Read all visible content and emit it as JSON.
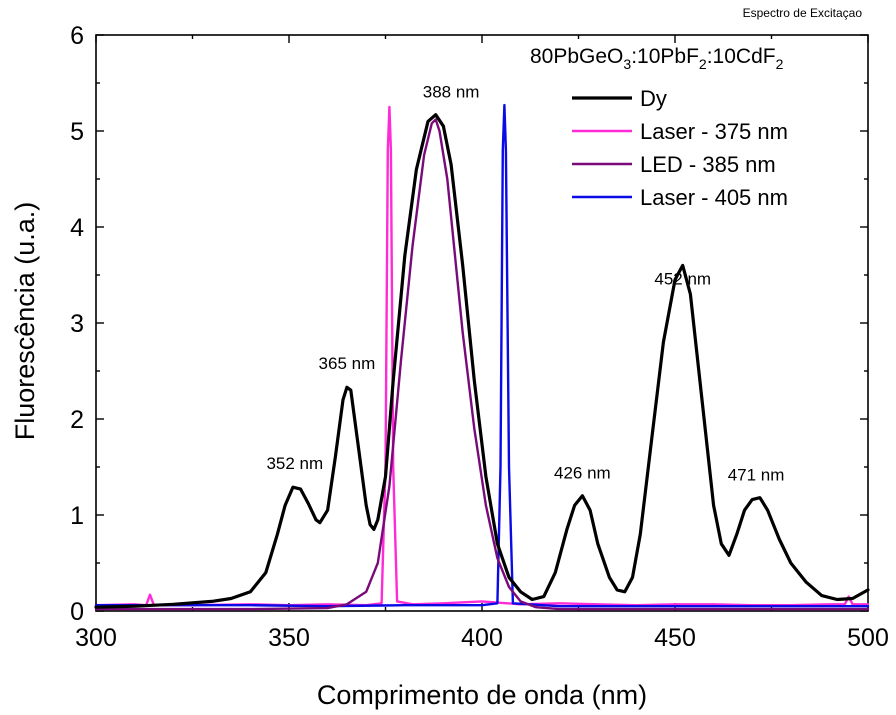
{
  "chart_data": {
    "type": "line",
    "corner_label": "Espectro de Excitaçao",
    "sample_label": {
      "parts": [
        {
          "text": "80PbGeO"
        },
        {
          "text": "3",
          "sub": true
        },
        {
          "text": ":10PbF"
        },
        {
          "text": "2",
          "sub": true
        },
        {
          "text": ":10CdF"
        },
        {
          "text": "2",
          "sub": true
        }
      ]
    },
    "xlabel": "Comprimento de onda (nm)",
    "ylabel": "Fluorescência (u.a.)",
    "xlim": [
      300,
      500
    ],
    "ylim": [
      0,
      6
    ],
    "xticks": [
      300,
      350,
      400,
      450,
      500
    ],
    "yticks": [
      0,
      1,
      2,
      3,
      4,
      5,
      6
    ],
    "legend_position": "top-right",
    "series": [
      {
        "name": "Dy",
        "color": "#000000",
        "points": [
          [
            300,
            0.04
          ],
          [
            310,
            0.05
          ],
          [
            320,
            0.07
          ],
          [
            330,
            0.1
          ],
          [
            335,
            0.13
          ],
          [
            340,
            0.2
          ],
          [
            344,
            0.4
          ],
          [
            347,
            0.8
          ],
          [
            349,
            1.1
          ],
          [
            351,
            1.29
          ],
          [
            353,
            1.27
          ],
          [
            355,
            1.12
          ],
          [
            357,
            0.95
          ],
          [
            358,
            0.92
          ],
          [
            360,
            1.05
          ],
          [
            362,
            1.6
          ],
          [
            364,
            2.2
          ],
          [
            365,
            2.33
          ],
          [
            366,
            2.3
          ],
          [
            368,
            1.7
          ],
          [
            370,
            1.1
          ],
          [
            371,
            0.9
          ],
          [
            372,
            0.85
          ],
          [
            373,
            0.95
          ],
          [
            375,
            1.4
          ],
          [
            377,
            2.4
          ],
          [
            380,
            3.7
          ],
          [
            383,
            4.6
          ],
          [
            386,
            5.1
          ],
          [
            388,
            5.17
          ],
          [
            390,
            5.05
          ],
          [
            392,
            4.65
          ],
          [
            395,
            3.6
          ],
          [
            398,
            2.4
          ],
          [
            401,
            1.4
          ],
          [
            404,
            0.7
          ],
          [
            407,
            0.35
          ],
          [
            410,
            0.2
          ],
          [
            413,
            0.12
          ],
          [
            416,
            0.15
          ],
          [
            419,
            0.4
          ],
          [
            422,
            0.85
          ],
          [
            424,
            1.1
          ],
          [
            426,
            1.2
          ],
          [
            428,
            1.05
          ],
          [
            430,
            0.7
          ],
          [
            433,
            0.35
          ],
          [
            435,
            0.22
          ],
          [
            437,
            0.2
          ],
          [
            439,
            0.35
          ],
          [
            441,
            0.8
          ],
          [
            444,
            1.8
          ],
          [
            447,
            2.8
          ],
          [
            450,
            3.45
          ],
          [
            452,
            3.6
          ],
          [
            454,
            3.3
          ],
          [
            457,
            2.2
          ],
          [
            460,
            1.1
          ],
          [
            462,
            0.7
          ],
          [
            464,
            0.58
          ],
          [
            466,
            0.8
          ],
          [
            468,
            1.05
          ],
          [
            470,
            1.16
          ],
          [
            472,
            1.18
          ],
          [
            474,
            1.05
          ],
          [
            477,
            0.75
          ],
          [
            480,
            0.5
          ],
          [
            484,
            0.3
          ],
          [
            488,
            0.16
          ],
          [
            492,
            0.12
          ],
          [
            496,
            0.13
          ],
          [
            500,
            0.22
          ]
        ]
      },
      {
        "name": "Laser - 375 nm",
        "color": "#ff2bd6",
        "points": [
          [
            300,
            0.06
          ],
          [
            310,
            0.07
          ],
          [
            313,
            0.06
          ],
          [
            314,
            0.17
          ],
          [
            315,
            0.06
          ],
          [
            325,
            0.06
          ],
          [
            340,
            0.07
          ],
          [
            350,
            0.06
          ],
          [
            360,
            0.07
          ],
          [
            370,
            0.06
          ],
          [
            374,
            0.08
          ],
          [
            375,
            1.5
          ],
          [
            375.6,
            4.8
          ],
          [
            376,
            5.25
          ],
          [
            376.4,
            4.8
          ],
          [
            377,
            1.5
          ],
          [
            378,
            0.1
          ],
          [
            382,
            0.07
          ],
          [
            390,
            0.08
          ],
          [
            400,
            0.1
          ],
          [
            410,
            0.07
          ],
          [
            420,
            0.08
          ],
          [
            430,
            0.07
          ],
          [
            440,
            0.06
          ],
          [
            450,
            0.07
          ],
          [
            460,
            0.07
          ],
          [
            470,
            0.06
          ],
          [
            480,
            0.06
          ],
          [
            490,
            0.07
          ],
          [
            494,
            0.07
          ],
          [
            495,
            0.15
          ],
          [
            496,
            0.07
          ],
          [
            500,
            0.07
          ]
        ]
      },
      {
        "name": "LED - 385 nm",
        "color": "#7a0a7a",
        "points": [
          [
            300,
            0.02
          ],
          [
            340,
            0.02
          ],
          [
            360,
            0.03
          ],
          [
            365,
            0.07
          ],
          [
            370,
            0.2
          ],
          [
            373,
            0.5
          ],
          [
            376,
            1.3
          ],
          [
            379,
            2.6
          ],
          [
            382,
            3.8
          ],
          [
            385,
            4.75
          ],
          [
            387,
            5.08
          ],
          [
            388,
            5.12
          ],
          [
            389,
            5.0
          ],
          [
            391,
            4.5
          ],
          [
            393,
            3.7
          ],
          [
            395,
            2.9
          ],
          [
            398,
            1.9
          ],
          [
            401,
            1.1
          ],
          [
            404,
            0.55
          ],
          [
            407,
            0.25
          ],
          [
            410,
            0.1
          ],
          [
            414,
            0.04
          ],
          [
            420,
            0.02
          ],
          [
            500,
            0.02
          ]
        ]
      },
      {
        "name": "Laser - 405 nm",
        "color": "#0a0ae6",
        "points": [
          [
            300,
            0.06
          ],
          [
            320,
            0.06
          ],
          [
            340,
            0.06
          ],
          [
            360,
            0.05
          ],
          [
            380,
            0.06
          ],
          [
            400,
            0.06
          ],
          [
            404,
            0.08
          ],
          [
            404.8,
            1.5
          ],
          [
            405.4,
            4.8
          ],
          [
            405.8,
            5.27
          ],
          [
            406.2,
            4.8
          ],
          [
            407,
            1.5
          ],
          [
            408,
            0.08
          ],
          [
            420,
            0.05
          ],
          [
            440,
            0.05
          ],
          [
            460,
            0.05
          ],
          [
            480,
            0.05
          ],
          [
            500,
            0.05
          ]
        ]
      }
    ],
    "annotations": [
      {
        "text": "352 nm",
        "x": 351.5,
        "y": 1.48
      },
      {
        "text": "365 nm",
        "x": 365,
        "y": 2.52
      },
      {
        "text": "388 nm",
        "x": 392,
        "y": 5.35
      },
      {
        "text": "426 nm",
        "x": 426,
        "y": 1.38
      },
      {
        "text": "452 nm",
        "x": 452,
        "y": 3.4
      },
      {
        "text": "471 nm",
        "x": 471,
        "y": 1.36
      }
    ]
  }
}
